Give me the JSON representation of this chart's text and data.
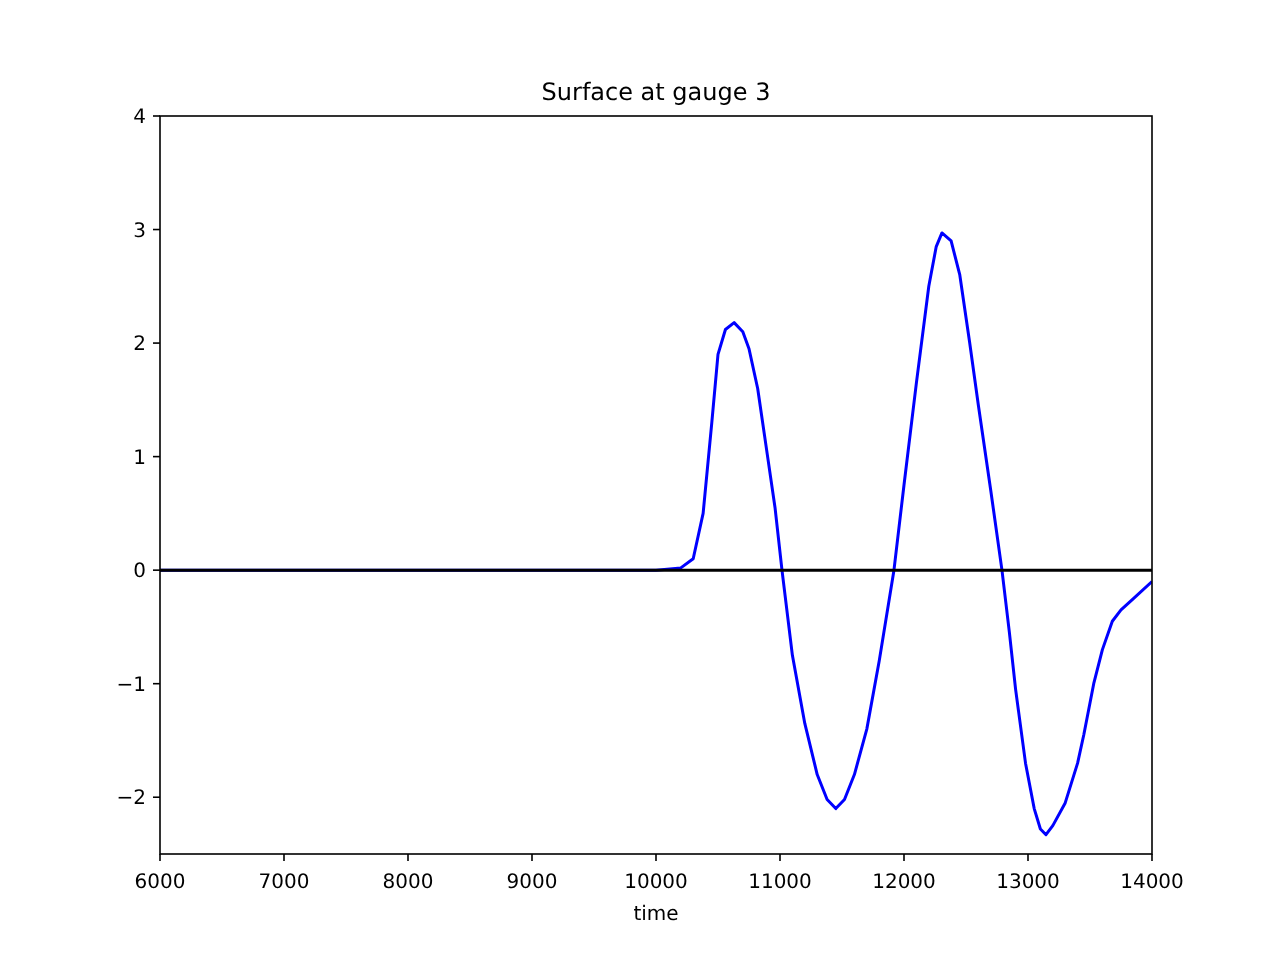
{
  "chart_data": {
    "type": "line",
    "title": "Surface at gauge 3",
    "xlabel": "time",
    "xlim": [
      6000,
      14000
    ],
    "xticks": [
      6000,
      7000,
      8000,
      9000,
      10000,
      11000,
      12000,
      13000,
      14000
    ],
    "ylim": [
      -2.5,
      4
    ],
    "yticks": [
      -2,
      -1,
      0,
      1,
      2,
      3,
      4
    ],
    "ref_lines": [
      {
        "axis": "y",
        "value": 0,
        "color": "#000000"
      }
    ],
    "series": [
      {
        "color": "#0000ff",
        "x": [
          6000,
          10000,
          10200,
          10300,
          10380,
          10450,
          10500,
          10560,
          10630,
          10700,
          10750,
          10820,
          10900,
          10960,
          11016,
          11100,
          11200,
          11300,
          11380,
          11450,
          11520,
          11600,
          11700,
          11800,
          11919,
          12000,
          12100,
          12200,
          12260,
          12306,
          12380,
          12450,
          12530,
          12600,
          12700,
          12790,
          12850,
          12900,
          12980,
          13050,
          13100,
          13145,
          13200,
          13300,
          13400,
          13450,
          13530,
          13600,
          13680,
          13750,
          13850,
          14000
        ],
        "values": [
          0,
          0,
          0.02,
          0.1,
          0.5,
          1.3,
          1.9,
          2.12,
          2.18,
          2.1,
          1.95,
          1.6,
          1.0,
          0.55,
          0,
          -0.75,
          -1.35,
          -1.8,
          -2.02,
          -2.1,
          -2.02,
          -1.8,
          -1.4,
          -0.8,
          0,
          0.75,
          1.65,
          2.5,
          2.85,
          2.97,
          2.9,
          2.6,
          2.0,
          1.45,
          0.7,
          0,
          -0.55,
          -1.05,
          -1.7,
          -2.1,
          -2.28,
          -2.33,
          -2.25,
          -2.05,
          -1.7,
          -1.45,
          -1.0,
          -0.7,
          -0.45,
          -0.35,
          -0.25,
          -0.1
        ]
      }
    ],
    "line_style": "solid",
    "marker": "none"
  }
}
